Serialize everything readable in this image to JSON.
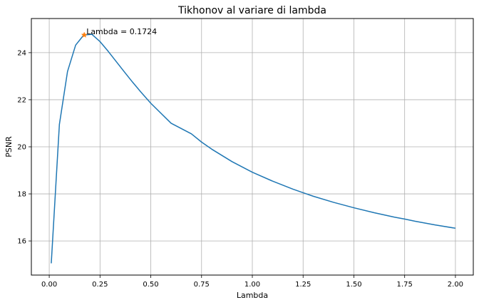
{
  "chart_data": {
    "type": "line",
    "title": "Tikhonov al variare di lambda",
    "xlabel": "Lambda",
    "ylabel": "PSNR",
    "xlim": [
      -0.088,
      2.088
    ],
    "ylim": [
      14.55,
      25.45
    ],
    "grid": true,
    "xticks": [
      0.0,
      0.25,
      0.5,
      0.75,
      1.0,
      1.25,
      1.5,
      1.75,
      2.0
    ],
    "xtick_labels": [
      "0.00",
      "0.25",
      "0.50",
      "0.75",
      "1.00",
      "1.25",
      "1.50",
      "1.75",
      "2.00"
    ],
    "yticks": [
      16,
      18,
      20,
      22,
      24
    ],
    "ytick_labels": [
      "16",
      "18",
      "20",
      "22",
      "24"
    ],
    "colors": {
      "line": "#1f77b4",
      "marker": "#ff7f0e",
      "grid": "#b0b0b0"
    },
    "series": [
      {
        "x": [
          0.01,
          0.05,
          0.09,
          0.13,
          0.17,
          0.21,
          0.25,
          0.29,
          0.33,
          0.37,
          0.41,
          0.45,
          0.5,
          0.6,
          0.7,
          0.75,
          0.8,
          0.9,
          1.0,
          1.1,
          1.2,
          1.25,
          1.3,
          1.4,
          1.5,
          1.6,
          1.7,
          1.75,
          1.8,
          1.9,
          2.0
        ],
        "y": [
          15.05,
          20.95,
          23.2,
          24.32,
          24.75,
          24.78,
          24.47,
          24.06,
          23.62,
          23.18,
          22.75,
          22.34,
          21.85,
          21.0,
          20.55,
          20.2,
          19.9,
          19.37,
          18.92,
          18.54,
          18.2,
          18.05,
          17.9,
          17.64,
          17.41,
          17.2,
          17.01,
          16.93,
          16.84,
          16.68,
          16.54
        ]
      }
    ],
    "highlight": {
      "x": 0.1724,
      "y": 24.75
    },
    "annotation": "Lambda = 0.1724"
  }
}
